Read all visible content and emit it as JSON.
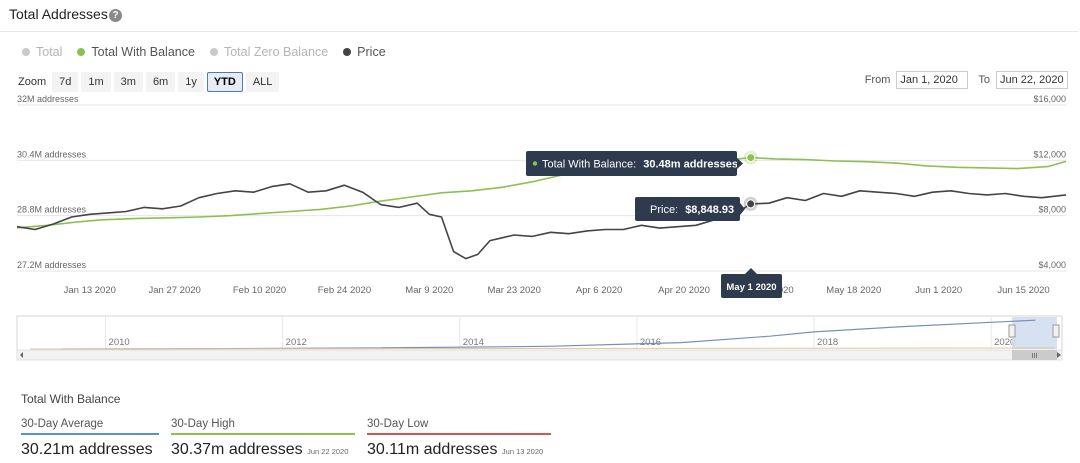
{
  "header": {
    "title": "Total Addresses",
    "help_icon": "?"
  },
  "legend": [
    {
      "label": "Total",
      "color": "#c9c9c9",
      "active": false
    },
    {
      "label": "Total With Balance",
      "color": "#8cc152",
      "active": true
    },
    {
      "label": "Total Zero Balance",
      "color": "#c9c9c9",
      "active": false
    },
    {
      "label": "Price",
      "color": "#434348",
      "active": true
    }
  ],
  "zoom": {
    "label": "Zoom",
    "buttons": [
      "7d",
      "1m",
      "3m",
      "6m",
      "1y",
      "YTD",
      "ALL"
    ],
    "active": "YTD"
  },
  "range": {
    "from_label": "From",
    "from_value": "Jan 1, 2020",
    "to_label": "To",
    "to_value": "Jun 22, 2020"
  },
  "tooltip": {
    "balance_label": "Total With Balance:",
    "balance_value": "30.48m addresses",
    "price_label": "Price:",
    "price_value": "$8,848.93",
    "date": "May 1 2020"
  },
  "navigator": {
    "years": [
      "2010",
      "2012",
      "2014",
      "2016",
      "2018",
      "2020"
    ],
    "scroll_grip": "III"
  },
  "stats": {
    "title": "Total With Balance",
    "items": [
      {
        "label": "30-Day Average",
        "value": "30.21m addresses",
        "date": "",
        "color": "#5b8fd6"
      },
      {
        "label": "30-Day High",
        "value": "30.37m addresses",
        "date": "Jun 22 2020",
        "color": "#8cc152"
      },
      {
        "label": "30-Day Low",
        "value": "30.11m addresses",
        "date": "Jun 13 2020",
        "color": "#d9534f"
      }
    ]
  },
  "chart_data": {
    "type": "line",
    "title": "Total Addresses",
    "left_axis": {
      "ticks": [
        "27.2M addresses",
        "28.8M addresses",
        "30.4M addresses",
        "32M addresses"
      ],
      "values": [
        27.2,
        28.8,
        30.4,
        32
      ],
      "unit": "M addresses"
    },
    "right_axis": {
      "ticks": [
        "$4,000",
        "$8,000",
        "$12,000",
        "$16,000"
      ],
      "values": [
        4000,
        8000,
        12000,
        16000
      ]
    },
    "x_ticks": [
      "Jan 13 2020",
      "Jan 27 2020",
      "Feb 10 2020",
      "Feb 24 2020",
      "Mar 9 2020",
      "Mar 23 2020",
      "Apr 6 2020",
      "Apr 20 2020",
      "May 4 2020",
      "May 18 2020",
      "Jun 1 2020",
      "Jun 15 2020"
    ],
    "x_tick_days": [
      12,
      26,
      40,
      54,
      68,
      82,
      96,
      110,
      124,
      138,
      152,
      166
    ],
    "x_range_days": [
      0,
      173
    ],
    "series": [
      {
        "name": "Total With Balance",
        "color": "#8cc152",
        "axis": "left",
        "x_days": [
          0,
          5,
          10,
          14,
          20,
          26,
          30,
          35,
          40,
          45,
          50,
          55,
          60,
          65,
          70,
          75,
          80,
          85,
          90,
          95,
          100,
          105,
          110,
          115,
          121,
          125,
          130,
          135,
          140,
          145,
          150,
          155,
          160,
          165,
          170,
          173
        ],
        "values": [
          28.45,
          28.52,
          28.62,
          28.68,
          28.72,
          28.74,
          28.76,
          28.8,
          28.86,
          28.92,
          28.98,
          29.08,
          29.22,
          29.34,
          29.46,
          29.52,
          29.62,
          29.78,
          29.98,
          30.12,
          30.2,
          30.24,
          30.28,
          30.36,
          30.48,
          30.44,
          30.42,
          30.38,
          30.36,
          30.32,
          30.24,
          30.2,
          30.18,
          30.16,
          30.22,
          30.37
        ]
      },
      {
        "name": "Price",
        "color": "#434348",
        "axis": "right",
        "x_days": [
          0,
          3,
          6,
          9,
          12,
          15,
          18,
          21,
          24,
          27,
          30,
          33,
          36,
          39,
          42,
          45,
          48,
          51,
          54,
          57,
          60,
          63,
          66,
          68,
          70,
          72,
          74,
          76,
          78,
          80,
          82,
          85,
          88,
          91,
          94,
          97,
          100,
          103,
          106,
          109,
          112,
          115,
          118,
          121,
          124,
          127,
          130,
          133,
          136,
          139,
          142,
          145,
          148,
          151,
          154,
          157,
          160,
          163,
          166,
          169,
          173
        ],
        "values": [
          7200,
          7000,
          7400,
          7900,
          8100,
          8200,
          8300,
          8600,
          8500,
          8700,
          9300,
          9600,
          9800,
          9700,
          10100,
          10300,
          9700,
          9800,
          10200,
          9700,
          8800,
          8600,
          8900,
          8100,
          7900,
          5400,
          4900,
          5200,
          6200,
          6400,
          6600,
          6500,
          6800,
          6700,
          6900,
          7000,
          7000,
          7300,
          7100,
          7200,
          7300,
          7700,
          8000,
          8848.93,
          8900,
          9300,
          9100,
          9600,
          9400,
          9800,
          9700,
          9600,
          9400,
          9700,
          9800,
          9600,
          9500,
          9600,
          9400,
          9300,
          9500
        ]
      }
    ],
    "highlight_day": 121,
    "navigator_series": {
      "x_years": [
        2009.5,
        2011,
        2013,
        2015,
        2016.5,
        2017.5,
        2018,
        2019,
        2020.5
      ],
      "values": [
        0.0,
        0.3,
        0.9,
        2.5,
        6.0,
        12.0,
        16.0,
        21.0,
        27.0
      ]
    }
  }
}
